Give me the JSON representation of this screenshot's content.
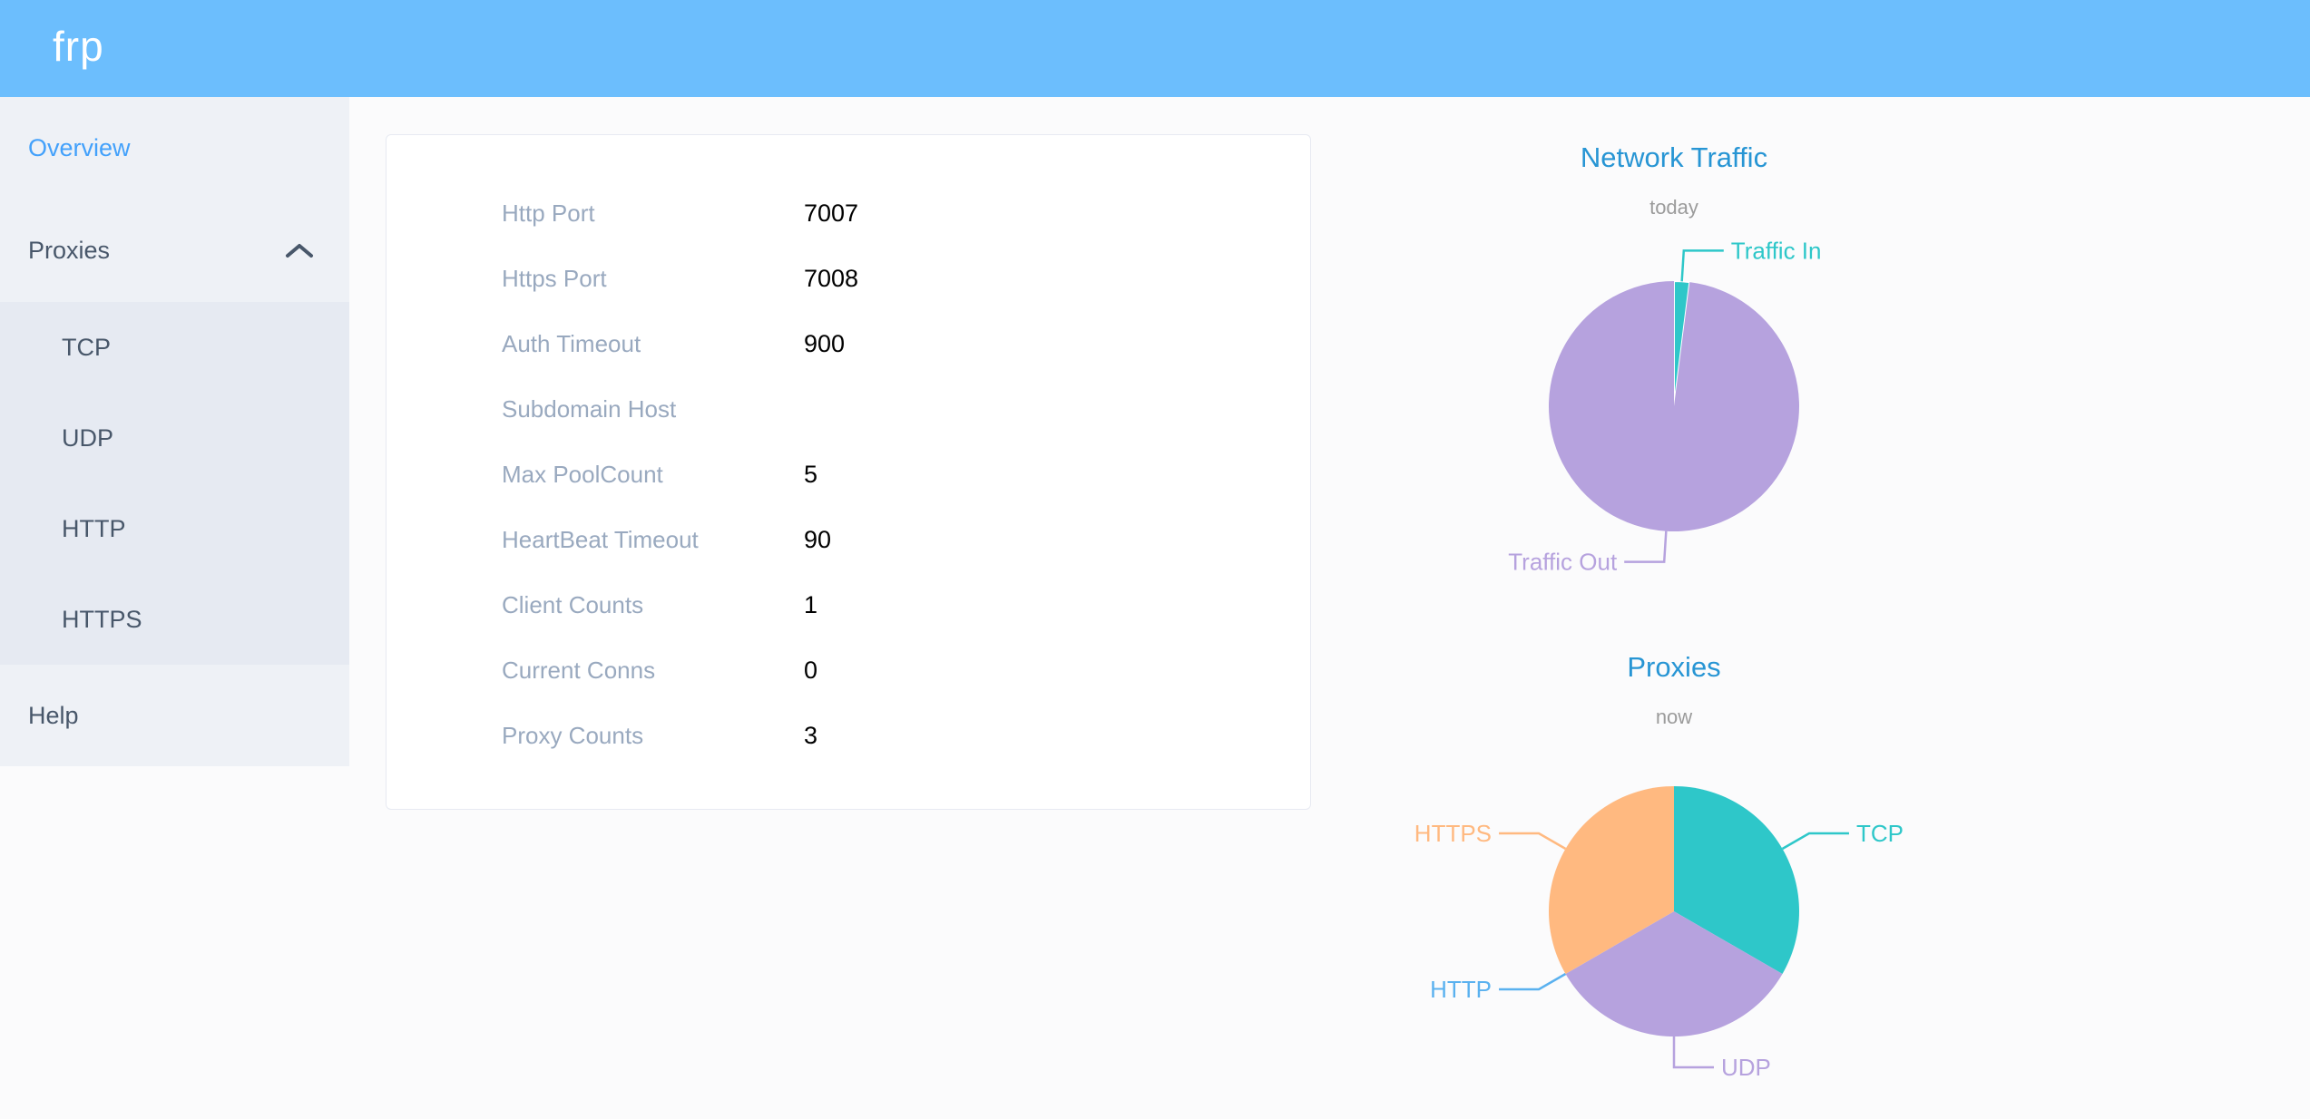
{
  "header": {
    "logo_text": "frp",
    "background_color": "#6cbefd"
  },
  "sidebar": {
    "background_color": "#eef1f6",
    "submenu_background_color": "#e6eaf2",
    "text_color": "#48576a",
    "active_text_color": "#43a1fb",
    "items": [
      {
        "label": "Overview",
        "active": true
      },
      {
        "label": "Proxies",
        "expanded": true,
        "icon": "chevron-up"
      },
      {
        "label": "TCP"
      },
      {
        "label": "UDP"
      },
      {
        "label": "HTTP"
      },
      {
        "label": "HTTPS"
      },
      {
        "label": "Help"
      }
    ]
  },
  "server_info": {
    "label_color": "#99a9bf",
    "value_color": "#000000",
    "rows": [
      {
        "label": "Http Port",
        "value": "7007"
      },
      {
        "label": "Https Port",
        "value": "7008"
      },
      {
        "label": "Auth Timeout",
        "value": "900"
      },
      {
        "label": "Subdomain Host",
        "value": ""
      },
      {
        "label": "Max PoolCount",
        "value": "5"
      },
      {
        "label": "HeartBeat Timeout",
        "value": "90"
      },
      {
        "label": "Client Counts",
        "value": "1"
      },
      {
        "label": "Current Conns",
        "value": "0"
      },
      {
        "label": "Proxy Counts",
        "value": "3"
      }
    ]
  },
  "chart_data": [
    {
      "type": "pie",
      "title": "Network Traffic",
      "subtitle": "today",
      "title_color": "#2795d4",
      "legend": "none",
      "label_position": "outside",
      "series": [
        {
          "name": "Traffic In",
          "value": 2,
          "color": "#2ec7c9"
        },
        {
          "name": "Traffic Out",
          "value": 98,
          "color": "#b6a2de"
        }
      ]
    },
    {
      "type": "pie",
      "title": "Proxies",
      "subtitle": "now",
      "title_color": "#2795d4",
      "legend": "none",
      "label_position": "outside",
      "series": [
        {
          "name": "TCP",
          "value": 1,
          "color": "#2ec7c9"
        },
        {
          "name": "UDP",
          "value": 1,
          "color": "#b6a2de"
        },
        {
          "name": "HTTP",
          "value": 0,
          "color": "#5ab1ef"
        },
        {
          "name": "HTTPS",
          "value": 1,
          "color": "#ffb980"
        }
      ]
    }
  ]
}
